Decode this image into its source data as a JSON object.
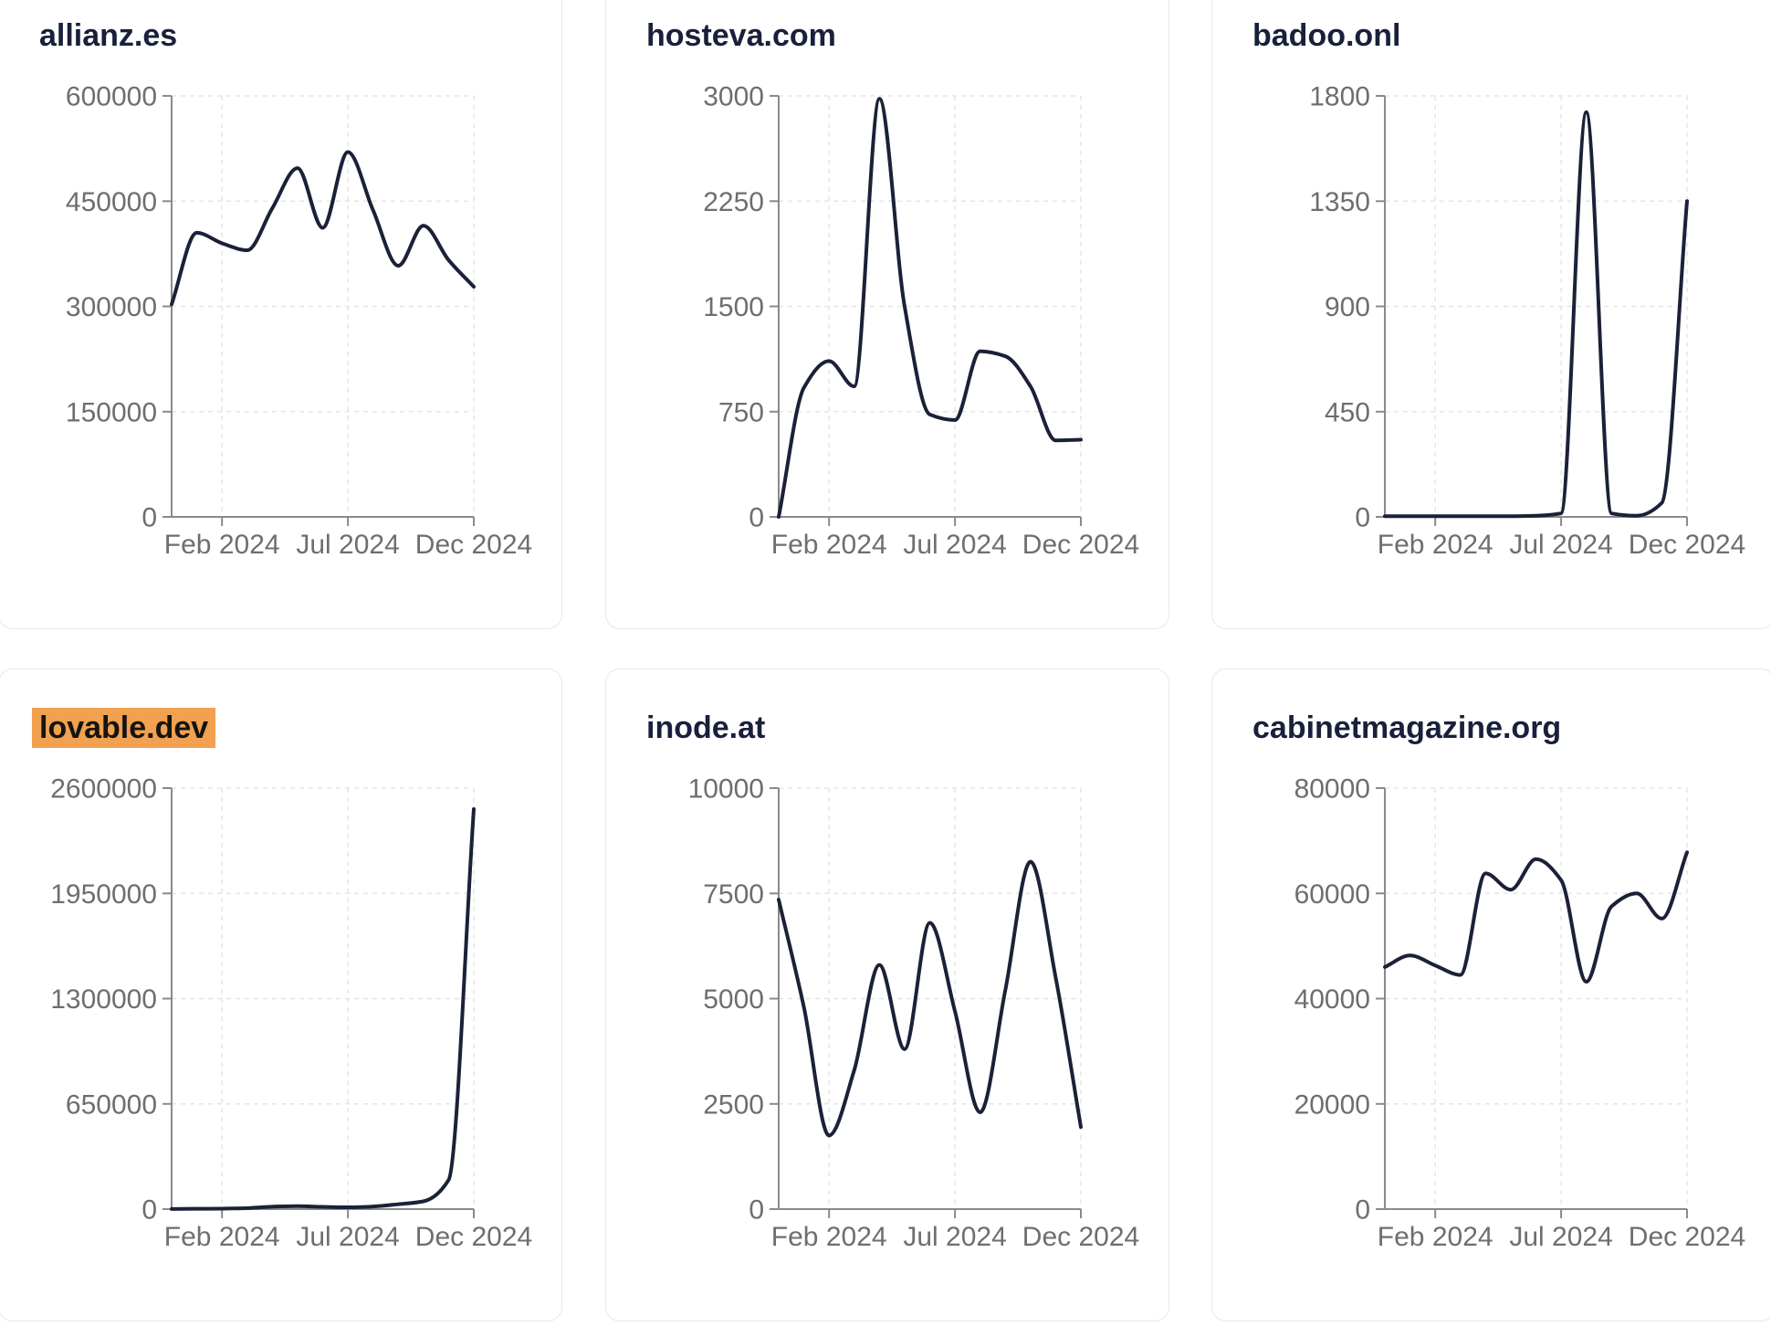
{
  "page": {
    "background": "#ffffff",
    "card_background": "#ffffff",
    "card_border_color": "#e6e8f0",
    "title_color": "#19203b",
    "line_color": "#1b2137",
    "axis_color": "#8a8a8a",
    "tick_label_color": "#6e6e6e",
    "grid_color": "#e5e5e5",
    "highlight_background": "#f1a14f",
    "highlight_text_color": "#141414"
  },
  "chart_data": [
    {
      "type": "line",
      "title": "allianz.es",
      "highlighted": false,
      "x": [
        "Dec 2023",
        "Jan 2024",
        "Feb 2024",
        "Mar 2024",
        "Apr 2024",
        "May 2024",
        "Jun 2024",
        "Jul 2024",
        "Aug 2024",
        "Sep 2024",
        "Oct 2024",
        "Nov 2024",
        "Dec 2024"
      ],
      "values": [
        303000,
        405000,
        390000,
        380000,
        440000,
        497000,
        412000,
        520000,
        437000,
        358000,
        415000,
        366000,
        328000
      ],
      "ylim": [
        0,
        600000
      ],
      "y_ticks": [
        0,
        150000,
        300000,
        450000,
        600000
      ],
      "x_tick_labels": [
        "Feb 2024",
        "Jul 2024",
        "Dec 2024"
      ],
      "x_tick_positions": [
        0.1667,
        0.5833,
        1
      ],
      "grid": true,
      "legend": null
    },
    {
      "type": "line",
      "title": "hosteva.com",
      "highlighted": false,
      "x": [
        "Dec 2023",
        "Jan 2024",
        "Feb 2024",
        "Mar 2024",
        "Apr 2024",
        "May 2024",
        "Jun 2024",
        "Jul 2024",
        "Aug 2024",
        "Sep 2024",
        "Oct 2024",
        "Nov 2024",
        "Dec 2024"
      ],
      "values": [
        0,
        920,
        1110,
        930,
        2980,
        1500,
        730,
        690,
        1180,
        1145,
        930,
        545,
        550
      ],
      "ylim": [
        0,
        3000
      ],
      "y_ticks": [
        0,
        750,
        1500,
        2250,
        3000
      ],
      "x_tick_labels": [
        "Feb 2024",
        "Jul 2024",
        "Dec 2024"
      ],
      "x_tick_positions": [
        0.1667,
        0.5833,
        1
      ],
      "grid": true,
      "legend": null
    },
    {
      "type": "line",
      "title": "badoo.onl",
      "highlighted": false,
      "x": [
        "Dec 2023",
        "Jan 2024",
        "Feb 2024",
        "Mar 2024",
        "Apr 2024",
        "May 2024",
        "Jun 2024",
        "Jul 2024",
        "Aug 2024",
        "Sep 2024",
        "Oct 2024",
        "Nov 2024",
        "Dec 2024"
      ],
      "values": [
        3,
        3,
        3,
        3,
        3,
        3,
        5,
        15,
        1730,
        15,
        5,
        60,
        1350
      ],
      "ylim": [
        0,
        1800
      ],
      "y_ticks": [
        0,
        450,
        900,
        1350,
        1800
      ],
      "x_tick_labels": [
        "Feb 2024",
        "Jul 2024",
        "Dec 2024"
      ],
      "x_tick_positions": [
        0.1667,
        0.5833,
        1
      ],
      "grid": true,
      "legend": null
    },
    {
      "type": "line",
      "title": "lovable.dev",
      "highlighted": true,
      "x": [
        "Dec 2023",
        "Jan 2024",
        "Feb 2024",
        "Mar 2024",
        "Apr 2024",
        "May 2024",
        "Jun 2024",
        "Jul 2024",
        "Aug 2024",
        "Sep 2024",
        "Oct 2024",
        "Nov 2024",
        "Dec 2024"
      ],
      "values": [
        1000,
        2000,
        3000,
        6000,
        15000,
        18000,
        14000,
        11000,
        16000,
        30000,
        48000,
        180000,
        2470000
      ],
      "ylim": [
        0,
        2600000
      ],
      "y_ticks": [
        0,
        650000,
        1300000,
        1950000,
        2600000
      ],
      "x_tick_labels": [
        "Feb 2024",
        "Jul 2024",
        "Dec 2024"
      ],
      "x_tick_positions": [
        0.1667,
        0.5833,
        1
      ],
      "grid": true,
      "legend": null
    },
    {
      "type": "line",
      "title": "inode.at",
      "highlighted": false,
      "x": [
        "Dec 2023",
        "Jan 2024",
        "Feb 2024",
        "Mar 2024",
        "Apr 2024",
        "May 2024",
        "Jun 2024",
        "Jul 2024",
        "Aug 2024",
        "Sep 2024",
        "Oct 2024",
        "Nov 2024",
        "Dec 2024"
      ],
      "values": [
        7350,
        4800,
        1750,
        3300,
        5800,
        3800,
        6800,
        4700,
        2300,
        5200,
        8250,
        5500,
        1950
      ],
      "ylim": [
        0,
        10000
      ],
      "y_ticks": [
        0,
        2500,
        5000,
        7500,
        10000
      ],
      "x_tick_labels": [
        "Feb 2024",
        "Jul 2024",
        "Dec 2024"
      ],
      "x_tick_positions": [
        0.1667,
        0.5833,
        1
      ],
      "grid": true,
      "legend": null
    },
    {
      "type": "line",
      "title": "cabinetmagazine.org",
      "highlighted": false,
      "x": [
        "Dec 2023",
        "Jan 2024",
        "Feb 2024",
        "Mar 2024",
        "Apr 2024",
        "May 2024",
        "Jun 2024",
        "Jul 2024",
        "Aug 2024",
        "Sep 2024",
        "Oct 2024",
        "Nov 2024",
        "Dec 2024"
      ],
      "values": [
        46000,
        48200,
        46300,
        44500,
        63800,
        60700,
        66500,
        62500,
        43200,
        57500,
        60000,
        55200,
        67800
      ],
      "ylim": [
        0,
        80000
      ],
      "y_ticks": [
        0,
        20000,
        40000,
        60000,
        80000
      ],
      "x_tick_labels": [
        "Feb 2024",
        "Jul 2024",
        "Dec 2024"
      ],
      "x_tick_positions": [
        0.1667,
        0.5833,
        1
      ],
      "grid": true,
      "legend": null
    }
  ],
  "layout": {
    "card_lefts": [
      -2,
      663,
      1327
    ],
    "row_tops": [
      -26,
      732
    ]
  }
}
